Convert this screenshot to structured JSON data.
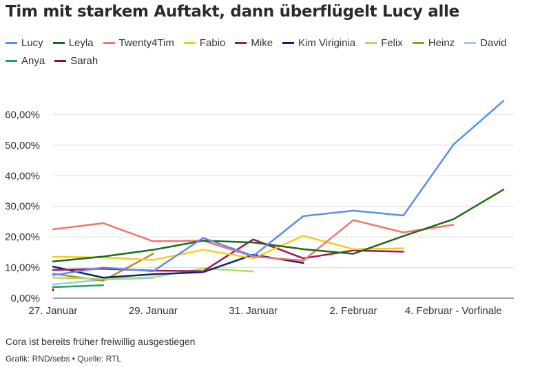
{
  "title": "Tim mit starkem Auftakt, dann überflügelt Lucy alle",
  "note": "Cora ist bereits früher freiwillig ausgestiegen",
  "source": "Grafik: RND/sebs • Quelle: RTL",
  "chart_data": {
    "type": "line",
    "x_tick_labels": [
      "27. Januar",
      "29. Januar",
      "31. Januar",
      "2. Februar",
      "4. Februar - Vorfinale"
    ],
    "y_tick_labels": [
      "0,00%",
      "10,00%",
      "20,00%",
      "30,00%",
      "40,00%",
      "50,00%",
      "60,00%"
    ],
    "x_range": [
      0,
      9
    ],
    "ylim": [
      0,
      70
    ],
    "y_ticks": [
      0,
      10,
      20,
      30,
      40,
      50,
      60
    ],
    "grid": true,
    "legend_position": "top",
    "series": [
      {
        "name": "Lucy",
        "color": "#5b8def",
        "values": [
          7.5,
          10,
          8.8,
          19.7,
          13.8,
          26.8,
          28.6,
          27,
          50.2,
          64.5
        ]
      },
      {
        "name": "Leyla",
        "color": "#1b6b13",
        "values": [
          12,
          13.6,
          15.8,
          18.8,
          18.2,
          16,
          14.5,
          20.3,
          25.8,
          35.5
        ]
      },
      {
        "name": "Twenty4Tim",
        "color": "#f2756a",
        "values": [
          22.5,
          24.5,
          18.6,
          18.8,
          13.6,
          12.3,
          25.5,
          21.5,
          24
        ]
      },
      {
        "name": "Fabio",
        "color": "#f5cd19",
        "values": [
          13.5,
          13.3,
          12.5,
          15.8,
          13,
          20.4,
          16,
          16.3
        ]
      },
      {
        "name": "Mike",
        "color": "#a3135c",
        "values": [
          9.2,
          9.6,
          9,
          8.8,
          19.2,
          13,
          15.6,
          15.2
        ]
      },
      {
        "name": "Kim Viriginia",
        "color": "#0e1f7a",
        "values": [
          10.3,
          6.7,
          7.8,
          8.5,
          14.2,
          11.5
        ]
      },
      {
        "name": "Felix",
        "color": "#a5e262",
        "values": [
          6.7,
          6.3,
          6.8,
          9.7,
          8.7
        ]
      },
      {
        "name": "Heinz",
        "color": "#b0901c",
        "values": [
          8,
          5.7,
          14.5
        ]
      },
      {
        "name": "David",
        "color": "#a7c4ed",
        "values": [
          4.5,
          6,
          6.6
        ]
      },
      {
        "name": "Anya",
        "color": "#1ea35e",
        "values": [
          3.6,
          4.2
        ]
      },
      {
        "name": "Sarah",
        "color": "#990f0f",
        "values": [
          2.7
        ]
      }
    ]
  }
}
